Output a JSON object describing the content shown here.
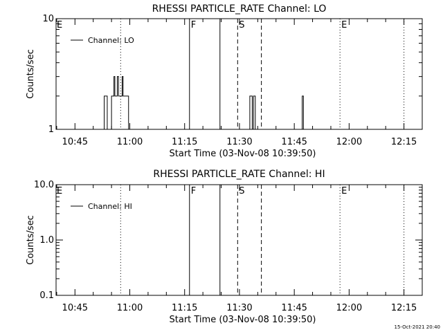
{
  "footer": {
    "timestamp": "15-Oct-2021 20:40"
  },
  "chart_data": [
    {
      "type": "line",
      "title": "RHESSI PARTICLE_RATE Channel: LO",
      "xlabel": "Start Time (03-Nov-08 10:39:50)",
      "ylabel": "Counts/sec",
      "yscale": "log",
      "ylim": [
        1,
        10
      ],
      "xlim": [
        "10:39:50",
        "12:20:00"
      ],
      "x_ticks": [
        "10:45",
        "11:00",
        "11:15",
        "11:30",
        "11:45",
        "12:00",
        "12:15"
      ],
      "y_ticks": [
        "1",
        "10"
      ],
      "legend": {
        "label": "Channel: LO",
        "position": "top-left"
      },
      "series": [
        {
          "name": "Channel: LO",
          "x": [
            "10:39:50",
            "10:52:40",
            "10:53:00",
            "10:53:20",
            "10:53:50",
            "10:54:30",
            "10:55:00",
            "10:55:20",
            "10:55:40",
            "10:55:55",
            "10:56:15",
            "10:56:35",
            "10:56:55",
            "10:57:15",
            "10:57:35",
            "10:57:55",
            "10:58:10",
            "10:58:25",
            "10:59:00",
            "10:59:40",
            "11:00:10",
            "11:00:40",
            "11:01:10",
            "11:32:30",
            "11:32:50",
            "11:33:10",
            "11:33:30",
            "11:33:50",
            "11:34:20",
            "11:46:50",
            "11:47:10",
            "11:47:30",
            "12:20:00"
          ],
          "y": [
            1,
            1,
            2,
            2,
            1,
            1,
            2,
            2,
            3,
            2,
            2,
            3,
            2,
            2,
            2,
            3,
            2,
            2,
            2,
            1,
            1,
            1,
            1,
            1,
            2,
            2,
            1,
            2,
            1,
            1,
            2,
            1,
            1
          ]
        }
      ],
      "vlines": [
        {
          "time": "10:57:30",
          "style": "dotted",
          "label": ""
        },
        {
          "time": "11:16:20",
          "style": "solid",
          "label": "F"
        },
        {
          "time": "11:24:40",
          "style": "solid",
          "label": ""
        },
        {
          "time": "11:29:30",
          "style": "dashed",
          "label": "S"
        },
        {
          "time": "11:36:00",
          "style": "dashed",
          "label": ""
        },
        {
          "time": "11:57:30",
          "style": "dotted",
          "label": "E"
        },
        {
          "time": "12:15:00",
          "style": "dotted",
          "label": ""
        }
      ],
      "edge_label": "E"
    },
    {
      "type": "line",
      "title": "RHESSI PARTICLE_RATE Channel: HI",
      "xlabel": "Start Time (03-Nov-08 10:39:50)",
      "ylabel": "Counts/sec",
      "yscale": "log",
      "ylim": [
        0.1,
        10
      ],
      "xlim": [
        "10:39:50",
        "12:20:00"
      ],
      "x_ticks": [
        "10:45",
        "11:00",
        "11:15",
        "11:30",
        "11:45",
        "12:00",
        "12:15"
      ],
      "y_ticks": [
        "0.1",
        "1.0",
        "10.0"
      ],
      "legend": {
        "label": "Channel: HI",
        "position": "top-left"
      },
      "series": [
        {
          "name": "Channel: HI",
          "x": [],
          "y": []
        }
      ],
      "vlines": [
        {
          "time": "10:57:30",
          "style": "dotted",
          "label": ""
        },
        {
          "time": "11:16:20",
          "style": "solid",
          "label": "F"
        },
        {
          "time": "11:24:40",
          "style": "solid",
          "label": ""
        },
        {
          "time": "11:29:30",
          "style": "dashed",
          "label": "S"
        },
        {
          "time": "11:36:00",
          "style": "dashed",
          "label": ""
        },
        {
          "time": "11:57:30",
          "style": "dotted",
          "label": "E"
        },
        {
          "time": "12:15:00",
          "style": "dotted",
          "label": ""
        }
      ],
      "edge_label": "E"
    }
  ]
}
